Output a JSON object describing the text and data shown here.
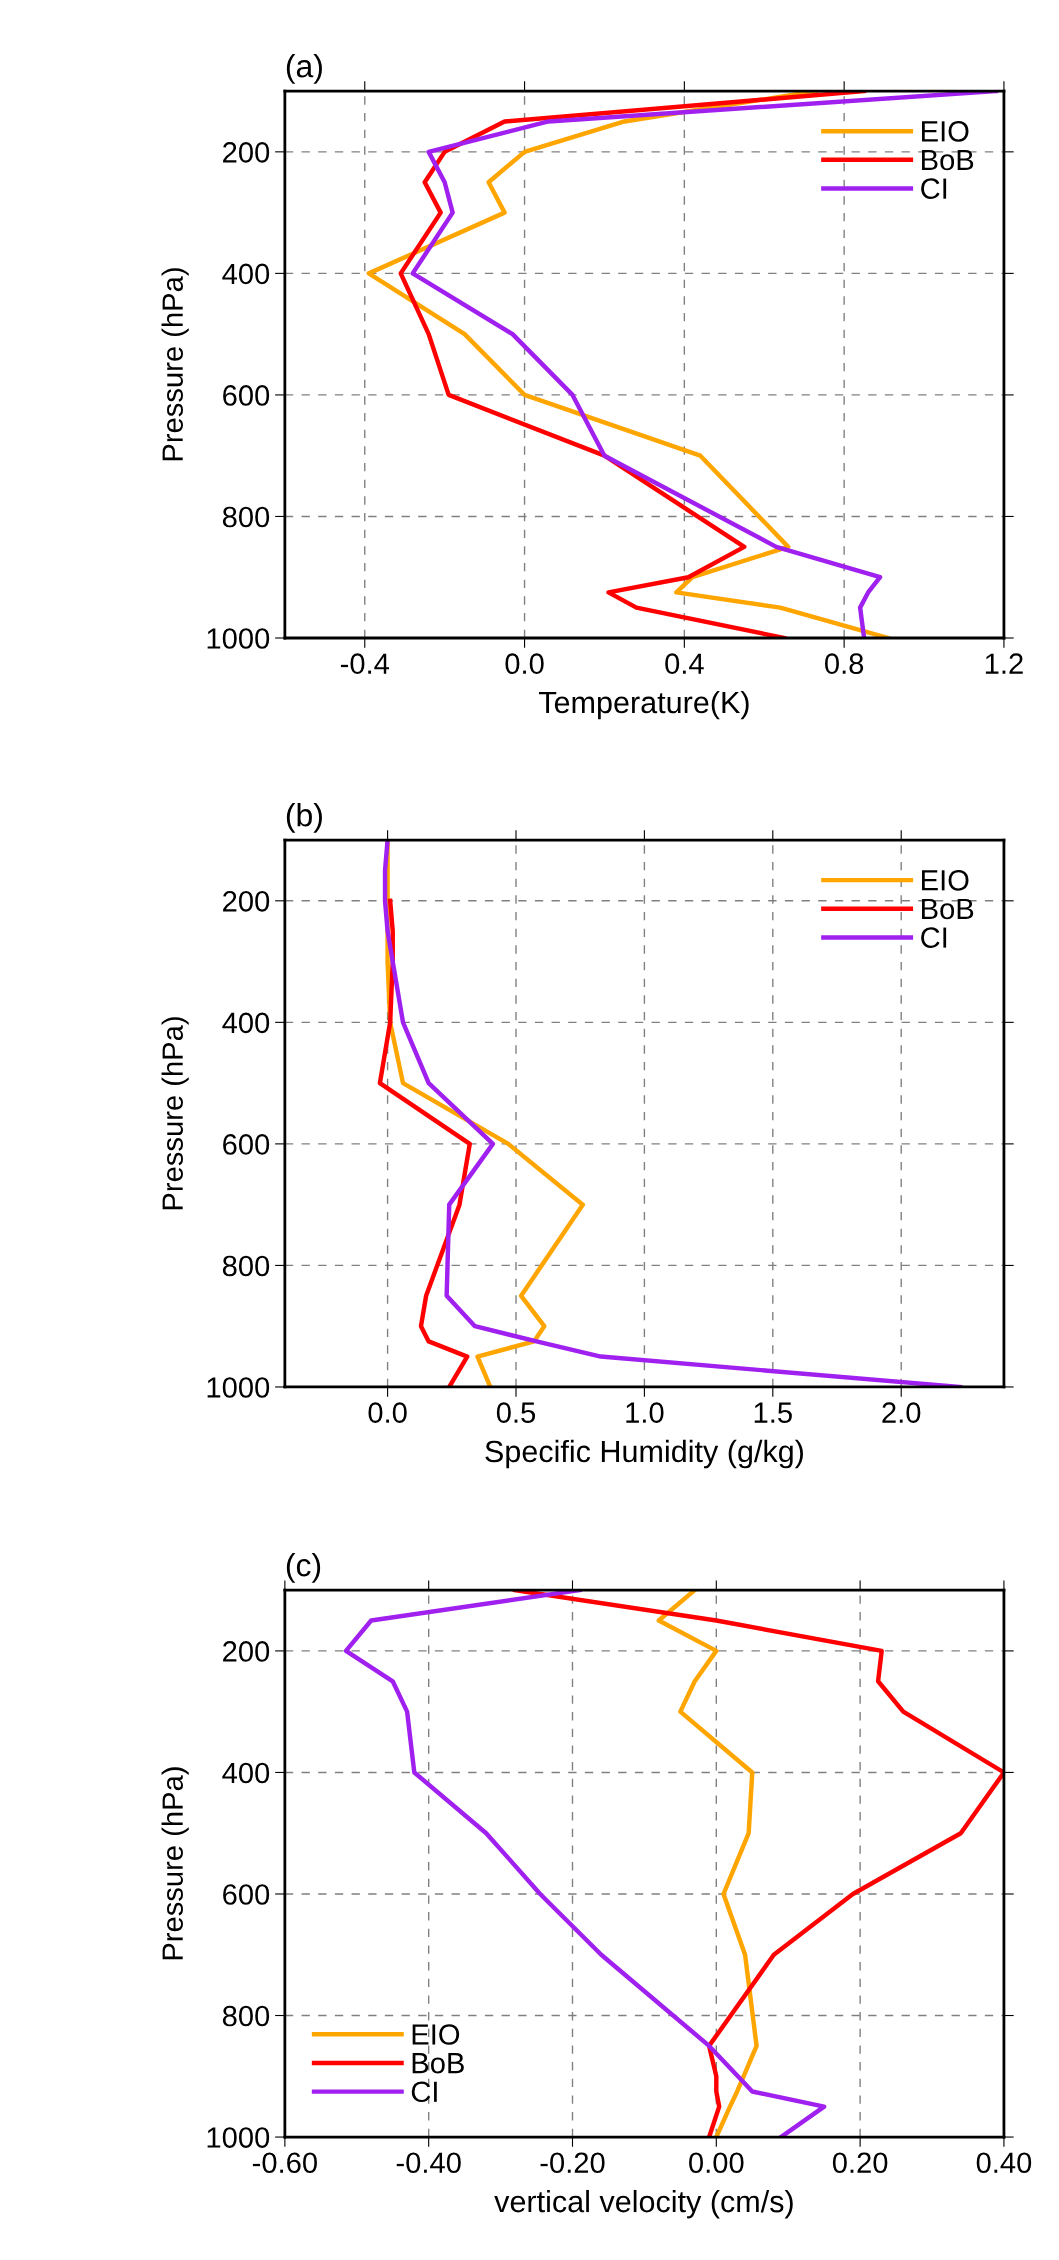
{
  "chart_data": [
    {
      "type": "line",
      "title": "(a)",
      "xlabel": "Temperature(K)",
      "ylabel": "Pressure (hPa)",
      "xlim": [
        -0.6,
        1.2
      ],
      "xticks": [
        {
          "value": -0.4,
          "label": "-0.4"
        },
        {
          "value": 0.0,
          "label": "0.0"
        },
        {
          "value": 0.4,
          "label": "0.4"
        },
        {
          "value": 0.8,
          "label": "0.8"
        },
        {
          "value": 1.2,
          "label": "1.2"
        }
      ],
      "ylim": [
        1000,
        100
      ],
      "yticks": [
        200,
        400,
        600,
        800,
        1000
      ],
      "grid": true,
      "legend": "top right",
      "line_style": "solid",
      "marker": "none",
      "series": [
        {
          "name": "EIO",
          "color": "#ffa500",
          "values": [
            100,
            150,
            200,
            250,
            300,
            400,
            500,
            600,
            700,
            850,
            900,
            925,
            950,
            1000
          ],
          "x": [
            0.73,
            0.25,
            0.0,
            -0.09,
            -0.05,
            -0.39,
            -0.15,
            0.0,
            0.44,
            0.66,
            0.42,
            0.38,
            0.64,
            0.91
          ]
        },
        {
          "name": "BoB",
          "color": "#ff0000",
          "values": [
            100,
            150,
            200,
            250,
            300,
            400,
            500,
            600,
            700,
            850,
            900,
            925,
            950,
            1000
          ],
          "x": [
            0.85,
            -0.05,
            -0.2,
            -0.25,
            -0.21,
            -0.31,
            -0.24,
            -0.19,
            0.2,
            0.55,
            0.41,
            0.21,
            0.28,
            0.65
          ]
        },
        {
          "name": "CI",
          "color": "#a020f0",
          "values": [
            100,
            150,
            200,
            250,
            300,
            400,
            500,
            600,
            700,
            850,
            900,
            925,
            950,
            1000
          ],
          "x": [
            1.18,
            0.06,
            -0.24,
            -0.2,
            -0.18,
            -0.28,
            -0.03,
            0.12,
            0.2,
            0.63,
            0.89,
            0.86,
            0.84,
            0.85
          ]
        }
      ]
    },
    {
      "type": "line",
      "title": "(b)",
      "xlabel": "Specific Humidity (g/kg)",
      "ylabel": "Pressure (hPa)",
      "xlim": [
        -0.4,
        2.4
      ],
      "xticks": [
        {
          "value": 0.0,
          "label": "0.0"
        },
        {
          "value": 0.5,
          "label": "0.5"
        },
        {
          "value": 1.0,
          "label": "1.0"
        },
        {
          "value": 1.5,
          "label": "1.5"
        },
        {
          "value": 2.0,
          "label": "2.0"
        }
      ],
      "ylim": [
        1000,
        100
      ],
      "yticks": [
        200,
        400,
        600,
        800,
        1000
      ],
      "grid": true,
      "legend": "top right",
      "line_style": "solid",
      "marker": "none",
      "series": [
        {
          "name": "EIO",
          "color": "#ffa500",
          "values": [
            100,
            150,
            200,
            250,
            300,
            400,
            500,
            600,
            700,
            850,
            900,
            925,
            950,
            1000
          ],
          "x": [
            0.0,
            0.0,
            0.0,
            0.0,
            0.0,
            0.01,
            0.06,
            0.47,
            0.76,
            0.52,
            0.61,
            0.57,
            0.35,
            0.4
          ]
        },
        {
          "name": "BoB",
          "color": "#ff0000",
          "values": [
            200,
            250,
            300,
            400,
            500,
            600,
            700,
            850,
            900,
            925,
            950,
            1000
          ],
          "x": [
            0.01,
            0.02,
            0.02,
            0.01,
            -0.03,
            0.32,
            0.28,
            0.15,
            0.13,
            0.16,
            0.31,
            0.24
          ]
        },
        {
          "name": "CI",
          "color": "#a020f0",
          "values": [
            100,
            150,
            200,
            250,
            300,
            400,
            500,
            600,
            700,
            850,
            900,
            925,
            950,
            1000
          ],
          "x": [
            0.0,
            -0.01,
            -0.01,
            0.0,
            0.02,
            0.06,
            0.16,
            0.41,
            0.24,
            0.23,
            0.34,
            0.58,
            0.83,
            2.23
          ]
        }
      ]
    },
    {
      "type": "line",
      "title": "(c)",
      "xlabel": "vertical velocity (cm/s)",
      "ylabel": "Pressure (hPa)",
      "xlim": [
        -0.6,
        0.4
      ],
      "xticks": [
        {
          "value": -0.6,
          "label": "-0.60"
        },
        {
          "value": -0.4,
          "label": "-0.40"
        },
        {
          "value": -0.2,
          "label": "-0.20"
        },
        {
          "value": 0.0,
          "label": "0.00"
        },
        {
          "value": 0.2,
          "label": "0.20"
        },
        {
          "value": 0.4,
          "label": "0.40"
        }
      ],
      "ylim": [
        1000,
        100
      ],
      "yticks": [
        200,
        400,
        600,
        800,
        1000
      ],
      "grid": true,
      "legend": "bottom left",
      "line_style": "solid",
      "marker": "none",
      "series": [
        {
          "name": "EIO",
          "color": "#ffa500",
          "values": [
            100,
            150,
            200,
            250,
            300,
            400,
            500,
            600,
            700,
            850,
            900,
            925,
            950,
            1000
          ],
          "x": [
            -0.03,
            -0.08,
            0.0,
            -0.03,
            -0.05,
            0.05,
            0.045,
            0.01,
            0.04,
            0.056,
            0.038,
            0.029,
            0.019,
            0.0
          ]
        },
        {
          "name": "BoB",
          "color": "#ff0000",
          "values": [
            100,
            150,
            200,
            250,
            300,
            400,
            500,
            600,
            700,
            850,
            900,
            925,
            950,
            1000
          ],
          "x": [
            -0.28,
            0.0,
            0.23,
            0.225,
            0.26,
            0.4,
            0.34,
            0.19,
            0.08,
            -0.01,
            0.0,
            0.0,
            0.004,
            -0.01
          ]
        },
        {
          "name": "CI",
          "color": "#a020f0",
          "values": [
            100,
            150,
            200,
            250,
            300,
            400,
            500,
            600,
            700,
            850,
            900,
            925,
            950,
            1000
          ],
          "x": [
            -0.19,
            -0.48,
            -0.515,
            -0.45,
            -0.43,
            -0.42,
            -0.32,
            -0.245,
            -0.16,
            -0.01,
            0.03,
            0.05,
            0.15,
            0.09
          ]
        }
      ]
    }
  ]
}
